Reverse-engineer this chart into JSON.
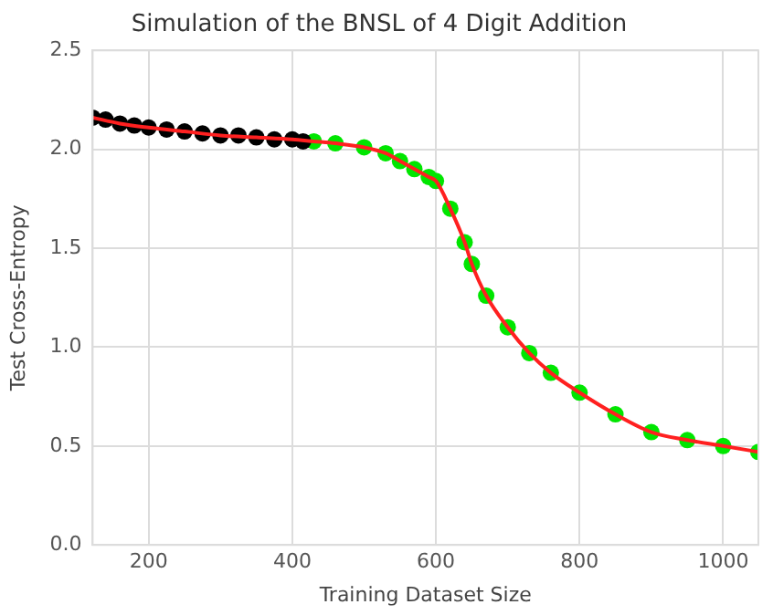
{
  "chart_data": {
    "type": "scatter",
    "title": "Simulation of the BNSL of 4 Digit Addition",
    "xlabel": "Training Dataset Size",
    "ylabel": "Test Cross-Entropy",
    "xlim": [
      122,
      1049
    ],
    "xticks": [
      200,
      400,
      600,
      800,
      1000
    ],
    "ylim": [
      0,
      2.5
    ],
    "yticks": [
      {
        "value": 0,
        "label": "0.0"
      },
      0.5,
      {
        "value": 1,
        "label": "1.0"
      },
      1.5,
      {
        "value": 2,
        "label": "2.0"
      },
      2.5
    ],
    "grid": true,
    "legend": false,
    "series": [
      {
        "marker": "circle",
        "color": "#000000",
        "x": [
          122,
          140,
          160,
          180,
          200,
          225,
          250,
          275,
          300,
          325,
          350,
          375,
          400,
          415
        ],
        "values": [
          2.16,
          2.15,
          2.13,
          2.12,
          2.11,
          2.1,
          2.09,
          2.08,
          2.07,
          2.07,
          2.06,
          2.05,
          2.05,
          2.04
        ]
      },
      {
        "marker": "circle",
        "color": "#00e600",
        "x": [
          430,
          460,
          500,
          530,
          550,
          570,
          590,
          600,
          620,
          640,
          650,
          670,
          700,
          730,
          760,
          800,
          850,
          900,
          950,
          1000,
          1049
        ],
        "values": [
          2.04,
          2.03,
          2.01,
          1.98,
          1.94,
          1.9,
          1.86,
          1.84,
          1.7,
          1.53,
          1.42,
          1.26,
          1.1,
          0.97,
          0.87,
          0.77,
          0.66,
          0.57,
          0.53,
          0.5,
          0.47
        ]
      },
      {
        "type": "line",
        "marker": "none",
        "color": "#ff2020",
        "x": [
          122,
          160,
          200,
          250,
          300,
          350,
          400,
          430,
          460,
          500,
          530,
          550,
          570,
          590,
          600,
          620,
          640,
          650,
          670,
          700,
          730,
          760,
          800,
          850,
          900,
          950,
          1000,
          1049
        ],
        "values": [
          2.16,
          2.13,
          2.11,
          2.09,
          2.07,
          2.06,
          2.05,
          2.04,
          2.03,
          2.01,
          1.98,
          1.94,
          1.9,
          1.86,
          1.84,
          1.7,
          1.53,
          1.42,
          1.26,
          1.1,
          0.97,
          0.87,
          0.77,
          0.66,
          0.57,
          0.53,
          0.5,
          0.47
        ]
      }
    ]
  }
}
